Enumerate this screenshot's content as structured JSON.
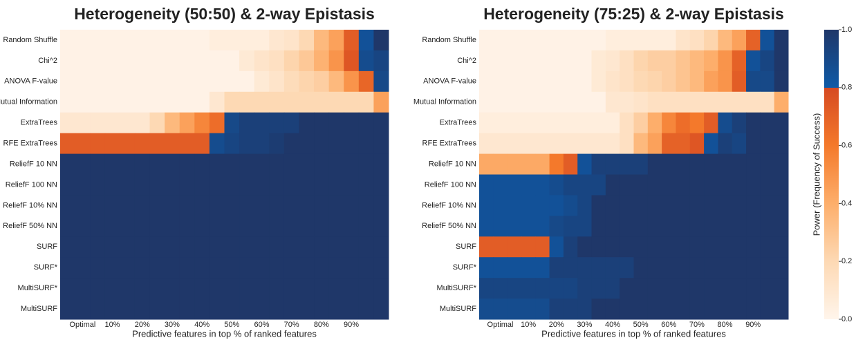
{
  "chart_data": [
    {
      "type": "heatmap",
      "title": "Heterogeneity (50:50) & 2-way Epistasis",
      "xlabel": "Predictive features in top % of ranked features",
      "categories": [
        null,
        "Optimal",
        null,
        "10%",
        null,
        "20%",
        null,
        "30%",
        null,
        "40%",
        null,
        "50%",
        null,
        "60%",
        null,
        "70%",
        null,
        "80%",
        null,
        "90%",
        null,
        null
      ],
      "rows": [
        "Random Shuffle",
        "Chi^2",
        "ANOVA F-value",
        "Mutual Information",
        "ExtraTrees",
        "RFE ExtraTrees",
        "ReliefF 10 NN",
        "ReliefF 100 NN",
        "ReliefF 10% NN",
        "ReliefF 50% NN",
        "SURF",
        "SURF*",
        "MultiSURF*",
        "MultiSURF"
      ],
      "values": [
        [
          0.02,
          0.02,
          0.02,
          0.02,
          0.02,
          0.02,
          0.02,
          0.02,
          0.02,
          0.02,
          0.05,
          0.05,
          0.05,
          0.05,
          0.1,
          0.12,
          0.2,
          0.35,
          0.45,
          0.72,
          0.85,
          1
        ],
        [
          0.02,
          0.02,
          0.02,
          0.02,
          0.02,
          0.02,
          0.02,
          0.02,
          0.02,
          0.02,
          0.02,
          0.02,
          0.08,
          0.12,
          0.15,
          0.22,
          0.28,
          0.38,
          0.5,
          0.75,
          0.88,
          0.92
        ],
        [
          0.02,
          0.02,
          0.02,
          0.02,
          0.02,
          0.02,
          0.02,
          0.02,
          0.02,
          0.02,
          0.02,
          0.02,
          0.02,
          0.08,
          0.12,
          0.18,
          0.22,
          0.25,
          0.35,
          0.5,
          0.68,
          0.9
        ],
        [
          0.02,
          0.02,
          0.02,
          0.02,
          0.02,
          0.02,
          0.02,
          0.02,
          0.02,
          0.02,
          0.1,
          0.2,
          0.2,
          0.2,
          0.2,
          0.2,
          0.2,
          0.2,
          0.2,
          0.2,
          0.2,
          0.45
        ],
        [
          0.1,
          0.1,
          0.1,
          0.1,
          0.1,
          0.1,
          0.2,
          0.35,
          0.45,
          0.55,
          0.65,
          0.9,
          0.95,
          0.95,
          0.95,
          0.95,
          1,
          1,
          1,
          1,
          1,
          1
        ],
        [
          0.72,
          0.72,
          0.72,
          0.72,
          0.72,
          0.72,
          0.72,
          0.72,
          0.72,
          0.72,
          0.88,
          0.92,
          0.95,
          0.95,
          0.97,
          1,
          1,
          1,
          1,
          1,
          1,
          1
        ],
        [
          1,
          1,
          1,
          1,
          1,
          1,
          1,
          1,
          1,
          1,
          1,
          1,
          1,
          1,
          1,
          1,
          1,
          1,
          1,
          1,
          1,
          1
        ],
        [
          1,
          1,
          1,
          1,
          1,
          1,
          1,
          1,
          1,
          1,
          1,
          1,
          1,
          1,
          1,
          1,
          1,
          1,
          1,
          1,
          1,
          1
        ],
        [
          1,
          1,
          1,
          1,
          1,
          1,
          1,
          1,
          1,
          1,
          1,
          1,
          1,
          1,
          1,
          1,
          1,
          1,
          1,
          1,
          1,
          1
        ],
        [
          1,
          1,
          1,
          1,
          1,
          1,
          1,
          1,
          1,
          1,
          1,
          1,
          1,
          1,
          1,
          1,
          1,
          1,
          1,
          1,
          1,
          1
        ],
        [
          1,
          1,
          1,
          1,
          1,
          1,
          1,
          1,
          1,
          1,
          1,
          1,
          1,
          1,
          1,
          1,
          1,
          1,
          1,
          1,
          1,
          1
        ],
        [
          1,
          1,
          1,
          1,
          1,
          1,
          1,
          1,
          1,
          1,
          1,
          1,
          1,
          1,
          1,
          1,
          1,
          1,
          1,
          1,
          1,
          1
        ],
        [
          1,
          1,
          1,
          1,
          1,
          1,
          1,
          1,
          1,
          1,
          1,
          1,
          1,
          1,
          1,
          1,
          1,
          1,
          1,
          1,
          1,
          1
        ],
        [
          1,
          1,
          1,
          1,
          1,
          1,
          1,
          1,
          1,
          1,
          1,
          1,
          1,
          1,
          1,
          1,
          1,
          1,
          1,
          1,
          1,
          1
        ]
      ]
    },
    {
      "type": "heatmap",
      "title": "Heterogeneity (75:25) & 2-way Epistasis",
      "xlabel": "Predictive features in top % of ranked features",
      "categories": [
        null,
        "Optimal",
        null,
        "10%",
        null,
        "20%",
        null,
        "30%",
        null,
        "40%",
        null,
        "50%",
        null,
        "60%",
        null,
        "70%",
        null,
        "80%",
        null,
        "90%",
        null,
        null
      ],
      "rows": [
        "Random Shuffle",
        "Chi^2",
        "ANOVA F-value",
        "Mutual Information",
        "ExtraTrees",
        "RFE ExtraTrees",
        "ReliefF 10 NN",
        "ReliefF 100 NN",
        "ReliefF 10% NN",
        "ReliefF 50% NN",
        "SURF",
        "SURF*",
        "MultiSURF*",
        "MultiSURF"
      ],
      "values": [
        [
          0.02,
          0.02,
          0.02,
          0.02,
          0.02,
          0.02,
          0.02,
          0.02,
          0.02,
          0.05,
          0.05,
          0.05,
          0.05,
          0.05,
          0.12,
          0.15,
          0.22,
          0.35,
          0.45,
          0.7,
          0.85,
          1
        ],
        [
          0.02,
          0.02,
          0.02,
          0.02,
          0.02,
          0.02,
          0.02,
          0.02,
          0.08,
          0.1,
          0.15,
          0.22,
          0.25,
          0.25,
          0.3,
          0.35,
          0.4,
          0.5,
          0.7,
          0.85,
          0.92,
          1
        ],
        [
          0.02,
          0.02,
          0.02,
          0.02,
          0.02,
          0.02,
          0.02,
          0.02,
          0.08,
          0.12,
          0.15,
          0.2,
          0.22,
          0.25,
          0.3,
          0.35,
          0.45,
          0.5,
          0.72,
          0.9,
          0.9,
          1
        ],
        [
          0.02,
          0.02,
          0.02,
          0.02,
          0.02,
          0.02,
          0.02,
          0.02,
          0.02,
          0.1,
          0.1,
          0.12,
          0.15,
          0.15,
          0.15,
          0.15,
          0.15,
          0.15,
          0.15,
          0.15,
          0.15,
          0.4
        ],
        [
          0.05,
          0.05,
          0.05,
          0.05,
          0.05,
          0.05,
          0.05,
          0.05,
          0.05,
          0.05,
          0.15,
          0.25,
          0.4,
          0.55,
          0.65,
          0.6,
          0.72,
          0.88,
          0.95,
          1,
          1,
          1
        ],
        [
          0.1,
          0.1,
          0.1,
          0.1,
          0.1,
          0.1,
          0.1,
          0.1,
          0.1,
          0.1,
          0.15,
          0.35,
          0.45,
          0.7,
          0.7,
          0.75,
          0.85,
          0.95,
          0.92,
          1,
          1,
          1
        ],
        [
          0.42,
          0.42,
          0.42,
          0.42,
          0.42,
          0.6,
          0.72,
          0.85,
          0.95,
          0.95,
          0.95,
          0.95,
          1,
          1,
          1,
          1,
          1,
          1,
          1,
          1,
          1,
          1
        ],
        [
          0.85,
          0.85,
          0.85,
          0.85,
          0.85,
          0.88,
          0.92,
          0.92,
          0.92,
          1,
          1,
          1,
          1,
          1,
          1,
          1,
          1,
          1,
          1,
          1,
          1,
          1
        ],
        [
          0.85,
          0.85,
          0.85,
          0.85,
          0.85,
          0.85,
          0.88,
          0.92,
          1,
          1,
          1,
          1,
          1,
          1,
          1,
          1,
          1,
          1,
          1,
          1,
          1,
          1
        ],
        [
          0.85,
          0.85,
          0.85,
          0.85,
          0.85,
          0.9,
          0.92,
          0.92,
          1,
          1,
          1,
          1,
          1,
          1,
          1,
          1,
          1,
          1,
          1,
          1,
          1,
          1
        ],
        [
          0.72,
          0.72,
          0.72,
          0.72,
          0.72,
          0.85,
          0.95,
          1,
          1,
          1,
          1,
          1,
          1,
          1,
          1,
          1,
          1,
          1,
          1,
          1,
          1,
          1
        ],
        [
          0.85,
          0.85,
          0.85,
          0.85,
          0.85,
          0.95,
          0.95,
          0.95,
          0.95,
          0.95,
          0.95,
          1,
          1,
          1,
          1,
          1,
          1,
          1,
          1,
          1,
          1,
          1
        ],
        [
          0.92,
          0.92,
          0.92,
          0.92,
          0.92,
          0.92,
          0.92,
          0.95,
          0.95,
          0.95,
          1,
          1,
          1,
          1,
          1,
          1,
          1,
          1,
          1,
          1,
          1,
          1
        ],
        [
          0.88,
          0.88,
          0.88,
          0.88,
          0.88,
          0.95,
          0.95,
          0.95,
          1,
          1,
          1,
          1,
          1,
          1,
          1,
          1,
          1,
          1,
          1,
          1,
          1,
          1
        ]
      ]
    }
  ],
  "colorbar": {
    "label": "Power (Frequency of Success)",
    "lim": [
      0,
      1
    ],
    "ticks": [
      {
        "value": 0,
        "label": "0.0"
      },
      0.2,
      0.4,
      0.6,
      0.8,
      {
        "value": 1,
        "label": "1.0"
      }
    ],
    "stops": [
      {
        "value": 0,
        "color": "#fff5eb"
      },
      {
        "value": 0.2,
        "color": "#fdd9b4"
      },
      {
        "value": 0.4,
        "color": "#fdae6b"
      },
      {
        "value": 0.6,
        "color": "#f4792b"
      },
      {
        "value": 0.8,
        "color": "#d64a22"
      },
      {
        "value": 0.8,
        "color": "#0e5aa7"
      },
      {
        "value": 1,
        "color": "#1f3769"
      }
    ]
  }
}
